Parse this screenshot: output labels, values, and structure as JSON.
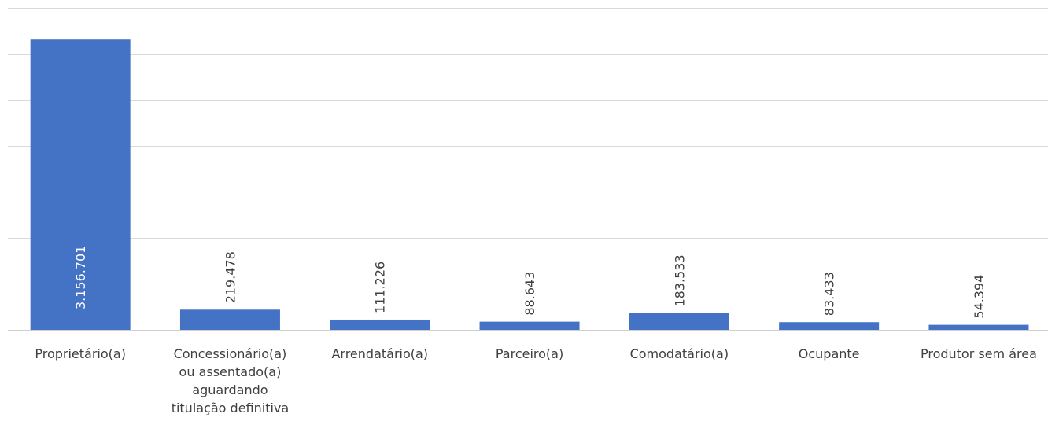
{
  "chart_data": {
    "type": "bar",
    "categories": [
      [
        "Proprietário(a)"
      ],
      [
        "Concessionário(a)",
        "ou assentado(a)",
        "aguardando",
        "titulação definitiva"
      ],
      [
        "Arrendatário(a)"
      ],
      [
        "Parceiro(a)"
      ],
      [
        "Comodatário(a)"
      ],
      [
        "Ocupante"
      ],
      [
        "Produtor sem área"
      ]
    ],
    "values": [
      3156701,
      219478,
      111226,
      88643,
      183533,
      83433,
      54394
    ],
    "data_labels": [
      "3.156.701",
      "219.478",
      "111.226",
      "88.643",
      "183.533",
      "83.433",
      "54.394"
    ],
    "ylim": [
      0,
      3500000
    ],
    "grid": true,
    "gridlines": 7,
    "colors": {
      "bar": "#4472c4",
      "grid": "#d9d9d9",
      "label_inside": "#ffffff",
      "label_outside": "#404040",
      "category_text": "#404040"
    }
  }
}
